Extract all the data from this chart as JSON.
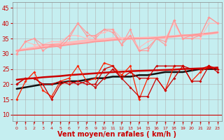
{
  "bg_color": "#c5eef0",
  "grid_color": "#b0b0b0",
  "xlabel": "Vent moyen/en rafales ( km/h )",
  "xlabel_color": "#cc0000",
  "xlabel_fontsize": 7,
  "ylabel_ticks": [
    10,
    15,
    20,
    25,
    30,
    35,
    40,
    45
  ],
  "xlim": [
    -0.5,
    23.5
  ],
  "ylim": [
    8,
    47
  ],
  "x": [
    0,
    1,
    2,
    3,
    4,
    5,
    6,
    7,
    8,
    9,
    10,
    11,
    12,
    13,
    14,
    15,
    16,
    17,
    18,
    19,
    20,
    21,
    22,
    23
  ],
  "rafales_line1": [
    30,
    34,
    35,
    31,
    33,
    32,
    35,
    40,
    37,
    35,
    38,
    37,
    33,
    38,
    31,
    31,
    35,
    33,
    41,
    35,
    36,
    36,
    42,
    40
  ],
  "rafales_line2": [
    30,
    34,
    33,
    33,
    34,
    34,
    36,
    36,
    35,
    36,
    37,
    38,
    35,
    36,
    32,
    34,
    35,
    35,
    40,
    35,
    35,
    35,
    40,
    40
  ],
  "rafales_line3": [
    30,
    34,
    35,
    33,
    33,
    33,
    36,
    40,
    36,
    36,
    38,
    38,
    33,
    36,
    31,
    32,
    35,
    34,
    41,
    35,
    35,
    36,
    42,
    40
  ],
  "rafales_trend1": [
    31.0,
    31.5,
    32.0,
    32.5,
    33.0,
    33.3,
    33.6,
    34.0,
    34.3,
    34.5,
    34.7,
    35.0,
    35.0,
    35.0,
    35.1,
    35.2,
    35.3,
    35.5,
    35.7,
    36.0,
    36.0,
    36.3,
    36.6,
    37.0
  ],
  "rafales_trend2": [
    31.0,
    31.3,
    31.6,
    32.0,
    32.3,
    32.6,
    33.0,
    33.3,
    33.6,
    34.0,
    34.2,
    34.5,
    34.7,
    35.0,
    35.0,
    35.0,
    35.2,
    35.5,
    35.7,
    36.0,
    36.2,
    36.5,
    36.7,
    37.0
  ],
  "vent_line1": [
    15,
    21,
    24,
    18,
    16,
    21,
    22,
    26,
    21,
    22,
    27,
    26,
    23,
    26,
    15,
    22,
    22,
    18,
    26,
    26,
    21,
    24,
    26,
    25
  ],
  "vent_line2": [
    20,
    22,
    22,
    20,
    20,
    21,
    20,
    21,
    20,
    20,
    25,
    26,
    22,
    24,
    22,
    22,
    26,
    26,
    26,
    26,
    25,
    25,
    26,
    25
  ],
  "vent_line3": [
    20,
    22,
    22,
    20,
    15,
    20,
    21,
    20,
    21,
    19,
    22,
    25,
    22,
    19,
    16,
    16,
    22,
    18,
    22,
    26,
    21,
    21,
    26,
    24
  ],
  "vent_trend1": [
    18.5,
    19.0,
    19.5,
    20.0,
    20.0,
    20.5,
    21.0,
    21.0,
    21.5,
    22.0,
    22.0,
    22.5,
    22.5,
    22.5,
    23.0,
    23.0,
    23.5,
    24.0,
    24.0,
    24.0,
    24.5,
    25.0,
    25.0,
    25.0
  ],
  "vent_trend2": [
    21.5,
    21.8,
    22.0,
    22.3,
    22.5,
    22.7,
    23.0,
    23.2,
    23.4,
    23.6,
    23.8,
    24.0,
    24.1,
    24.3,
    24.4,
    24.5,
    24.6,
    24.7,
    24.8,
    25.0,
    25.1,
    25.2,
    25.3,
    25.5
  ],
  "arrow_symbol": "↑",
  "pink_light": "#ffbbbb",
  "pink_mid": "#ff9999",
  "red_bright": "#ff2200",
  "red_dark": "#cc0000",
  "red_very_dark": "#880000",
  "black_line": "#111111"
}
